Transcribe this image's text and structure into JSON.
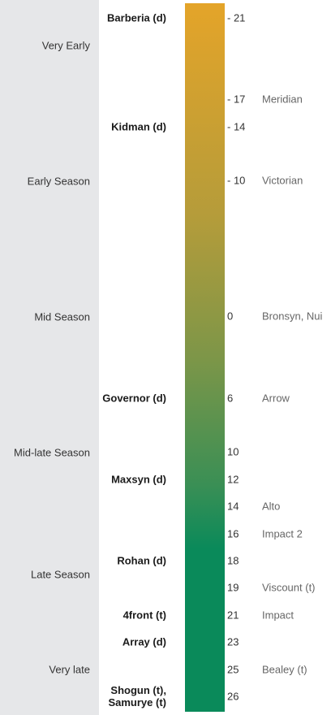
{
  "seasons": [
    "Very Early",
    "Early Season",
    "Mid Season",
    "Mid-late Season",
    "Late Season",
    "Very late"
  ],
  "rows": [
    {
      "left": "Barberia (d)",
      "tick": "- 21"
    },
    {},
    {},
    {
      "tick": "- 17",
      "right": "Meridian"
    },
    {
      "left": "Kidman (d)",
      "tick": "- 14"
    },
    {},
    {
      "tick": "- 10",
      "right": "Victorian"
    },
    {},
    {},
    {},
    {},
    {
      "tick": "0",
      "right": "Bronsyn, Nui"
    },
    {},
    {},
    {
      "left": "Governor (d)",
      "tick": "6",
      "right": "Arrow"
    },
    {},
    {
      "tick": "10"
    },
    {
      "left": "Maxsyn (d)",
      "tick": "12"
    },
    {
      "tick": "14",
      "right": "Alto"
    },
    {
      "tick": "16",
      "right": "Impact 2"
    },
    {
      "left": "Rohan (d)",
      "tick": "18"
    },
    {
      "tick": "19",
      "right": "Viscount (t)"
    },
    {
      "left": "4front (t)",
      "tick": "21",
      "right": "Impact"
    },
    {
      "left": "Array (d)",
      "tick": "23"
    },
    {
      "tick": "25",
      "right": "Bealey (t)"
    },
    {
      "left": "Shogun (t),\nSamurye (t)",
      "tick": "26"
    }
  ]
}
